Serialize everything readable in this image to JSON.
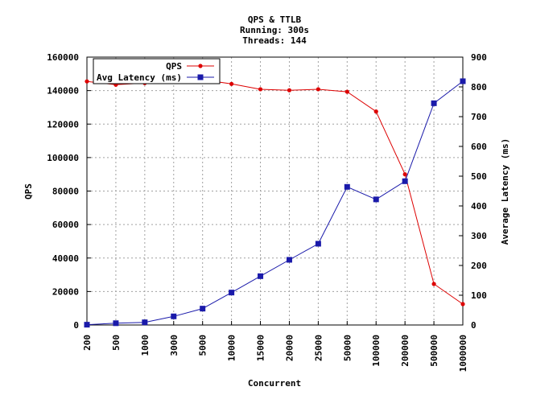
{
  "chart_data": {
    "type": "line",
    "title_lines": [
      "QPS & TTLB",
      "Running: 300s",
      "Threads: 144"
    ],
    "xlabel": "Concurrent",
    "ylabel_left": "QPS",
    "ylabel_right": "Average Latency (ms)",
    "categories": [
      "200",
      "500",
      "1000",
      "3000",
      "5000",
      "10000",
      "15000",
      "20000",
      "25000",
      "50000",
      "100000",
      "200000",
      "500000",
      "1000000"
    ],
    "ylim_left": [
      0,
      160000
    ],
    "yticks_left": [
      0,
      20000,
      40000,
      60000,
      80000,
      100000,
      120000,
      140000,
      160000
    ],
    "ylim_right": [
      0,
      900
    ],
    "yticks_right": [
      0,
      100,
      200,
      300,
      400,
      500,
      600,
      700,
      800,
      900
    ],
    "grid": true,
    "legend_position": "top-left",
    "series": [
      {
        "name": "QPS",
        "axis": "left",
        "color": "#dd0000",
        "marker": "circle",
        "values": [
          145500,
          143500,
          144500,
          148000,
          146500,
          144000,
          140800,
          140200,
          140800,
          139300,
          127500,
          90000,
          24500,
          12500
        ]
      },
      {
        "name": "Avg Latency (ms)",
        "axis": "right",
        "color": "#1a1aaa",
        "marker": "square",
        "values": [
          1,
          6,
          9,
          29,
          55,
          109,
          164,
          219,
          273,
          464,
          422,
          483,
          745,
          819
        ]
      }
    ]
  }
}
